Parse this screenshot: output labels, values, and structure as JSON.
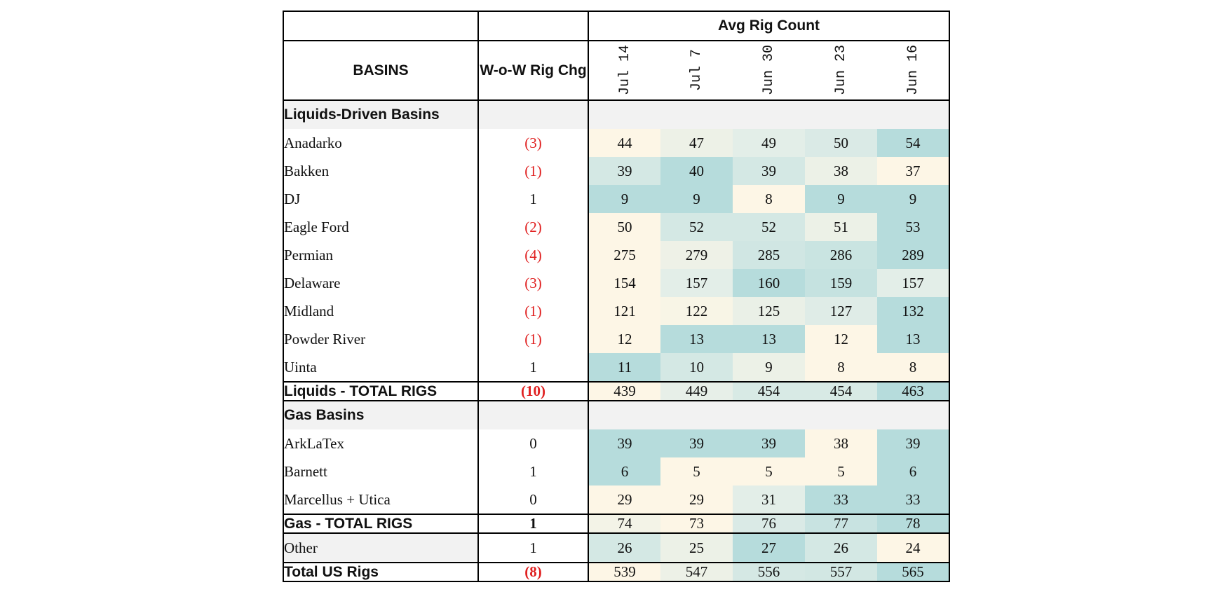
{
  "chart_data": {
    "type": "table",
    "title": "",
    "header": {
      "group_label": "Avg Rig Count",
      "basins_label": "BASINS",
      "change_label": "W-o-W Rig Chg",
      "dates": [
        "Jul 14",
        "Jul 7",
        "Jun 30",
        "Jun 23",
        "Jun 16"
      ]
    },
    "colors": {
      "low": "#fdf6e6",
      "mid": "#e3eee8",
      "high": "#b6dcdc",
      "negative_text": "#e02020",
      "section_bg": "#f2f2f2"
    },
    "rows": [
      {
        "kind": "section",
        "label": "Liquids-Driven Basins"
      },
      {
        "kind": "basin",
        "label": "Anadarko",
        "indent": false,
        "change": "(3)",
        "values": [
          44,
          47,
          49,
          50,
          54
        ]
      },
      {
        "kind": "basin",
        "label": "Bakken",
        "indent": false,
        "change": "(1)",
        "values": [
          39,
          40,
          39,
          38,
          37
        ]
      },
      {
        "kind": "basin",
        "label": "DJ",
        "indent": false,
        "change": "1",
        "values": [
          9,
          9,
          8,
          9,
          9
        ]
      },
      {
        "kind": "basin",
        "label": "Eagle Ford",
        "indent": false,
        "change": "(2)",
        "values": [
          50,
          52,
          52,
          51,
          53
        ]
      },
      {
        "kind": "basin",
        "label": "Permian",
        "indent": false,
        "change": "(4)",
        "values": [
          275,
          279,
          285,
          286,
          289
        ]
      },
      {
        "kind": "basin",
        "label": "Delaware",
        "indent": true,
        "change": "(3)",
        "values": [
          154,
          157,
          160,
          159,
          157
        ]
      },
      {
        "kind": "basin",
        "label": "Midland",
        "indent": true,
        "change": "(1)",
        "values": [
          121,
          122,
          125,
          127,
          132
        ]
      },
      {
        "kind": "basin",
        "label": "Powder River",
        "indent": false,
        "change": "(1)",
        "values": [
          12,
          13,
          13,
          12,
          13
        ]
      },
      {
        "kind": "basin",
        "label": "Uinta",
        "indent": false,
        "change": "1",
        "values": [
          11,
          10,
          9,
          8,
          8
        ]
      },
      {
        "kind": "total",
        "label": "Liquids - TOTAL RIGS",
        "change": "(10)",
        "values": [
          439,
          449,
          454,
          454,
          463
        ]
      },
      {
        "kind": "section",
        "label": "Gas Basins"
      },
      {
        "kind": "basin",
        "label": "ArkLaTex",
        "indent": true,
        "change": "0",
        "values": [
          39,
          39,
          39,
          38,
          39
        ]
      },
      {
        "kind": "basin",
        "label": "Barnett",
        "indent": true,
        "change": "1",
        "values": [
          6,
          5,
          5,
          5,
          6
        ]
      },
      {
        "kind": "basin",
        "label": "Marcellus + Utica",
        "indent": true,
        "change": "0",
        "values": [
          29,
          29,
          31,
          33,
          33
        ]
      },
      {
        "kind": "total",
        "label": "Gas - TOTAL RIGS",
        "change": "1",
        "values": [
          74,
          73,
          76,
          77,
          78
        ]
      },
      {
        "kind": "other",
        "label": "Other",
        "change": "1",
        "values": [
          26,
          25,
          27,
          26,
          24
        ]
      },
      {
        "kind": "total",
        "label": "Total US Rigs",
        "change": "(8)",
        "values": [
          539,
          547,
          556,
          557,
          565
        ]
      }
    ]
  }
}
